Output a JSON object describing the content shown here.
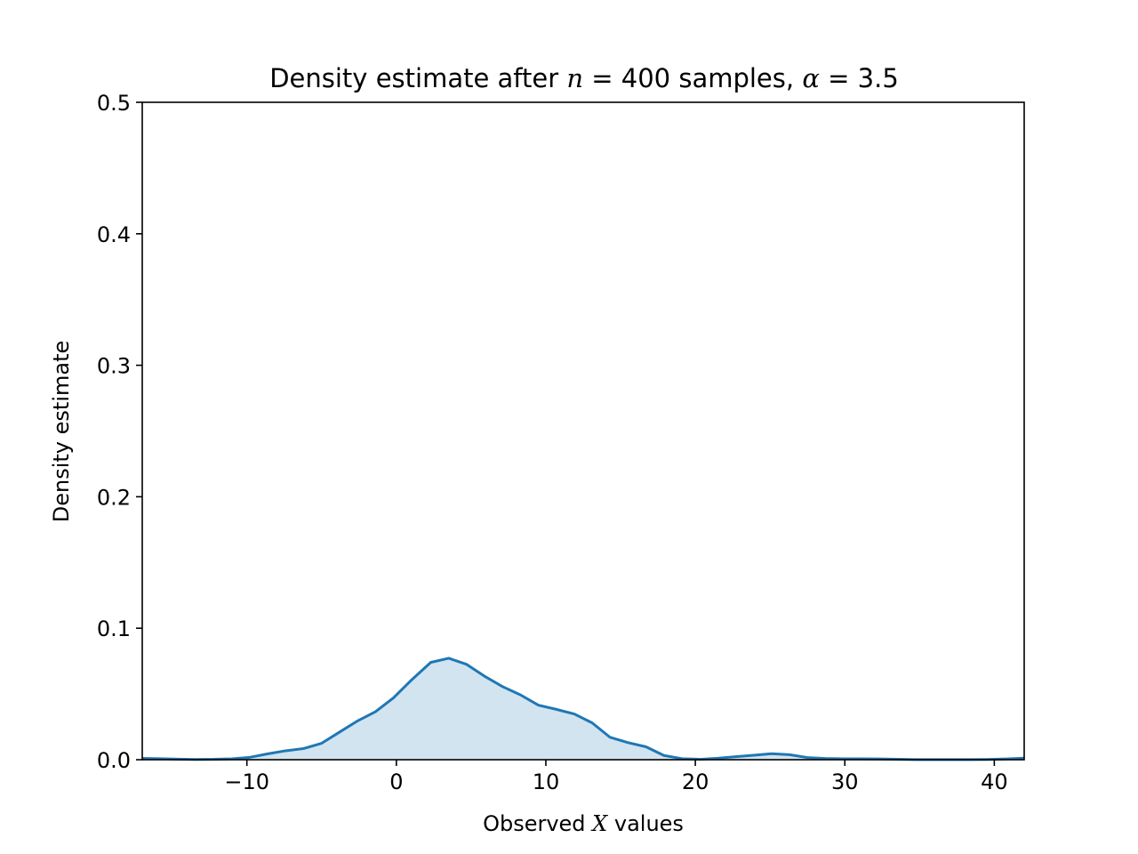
{
  "chart_data": {
    "type": "area",
    "title": {
      "prefix": "Density estimate after ",
      "n_symbol": "n",
      "n_eq": " = 400 samples, ",
      "alpha_symbol": "α",
      "alpha_eq": " = 3.5"
    },
    "xlabel": {
      "prefix": "Observed ",
      "symbol": "X",
      "suffix": " values"
    },
    "ylabel": "Density estimate",
    "xlim": [
      -17,
      42
    ],
    "ylim": [
      0,
      0.5
    ],
    "x_ticks": [
      -10,
      0,
      10,
      20,
      30,
      40
    ],
    "x_tick_labels": [
      "−10",
      "0",
      "10",
      "20",
      "30",
      "40"
    ],
    "y_ticks": [
      0.0,
      0.1,
      0.2,
      0.3,
      0.4,
      0.5
    ],
    "y_tick_labels": [
      "0.0",
      "0.1",
      "0.2",
      "0.3",
      "0.4",
      "0.5"
    ],
    "grid": false,
    "series": [
      {
        "line_color": "#1f77b4",
        "fill_color": "#1f77b4",
        "fill_opacity": 0.2,
        "x": [
          -17.0,
          -15.8,
          -14.6,
          -13.4,
          -12.2,
          -11.0,
          -9.8,
          -8.6,
          -7.4,
          -6.2,
          -5.0,
          -3.8,
          -2.6,
          -1.4,
          -0.2,
          1.0,
          2.3,
          3.5,
          4.7,
          5.9,
          7.1,
          8.3,
          9.5,
          10.7,
          11.9,
          13.1,
          14.3,
          15.5,
          16.7,
          17.9,
          19.1,
          20.3,
          21.5,
          22.7,
          23.9,
          25.1,
          26.3,
          27.5,
          28.7,
          29.9,
          31.1,
          32.3,
          33.5,
          34.7,
          35.9,
          37.1,
          38.3,
          39.5,
          40.8,
          42.0
        ],
        "y": [
          0.001,
          0.0008,
          0.0004,
          0.0002,
          0.0003,
          0.0007,
          0.0018,
          0.0045,
          0.0068,
          0.0085,
          0.0125,
          0.021,
          0.0295,
          0.0365,
          0.047,
          0.0605,
          0.074,
          0.0772,
          0.0725,
          0.0635,
          0.0556,
          0.0493,
          0.0415,
          0.0383,
          0.0348,
          0.028,
          0.017,
          0.013,
          0.0098,
          0.0032,
          0.0008,
          0.0003,
          0.0011,
          0.0023,
          0.0034,
          0.0046,
          0.0038,
          0.0016,
          0.0009,
          0.0007,
          0.0007,
          0.0006,
          0.0003,
          0.0001,
          0.0001,
          0.0001,
          0.0001,
          0.0002,
          0.0006,
          0.0012
        ]
      }
    ]
  }
}
